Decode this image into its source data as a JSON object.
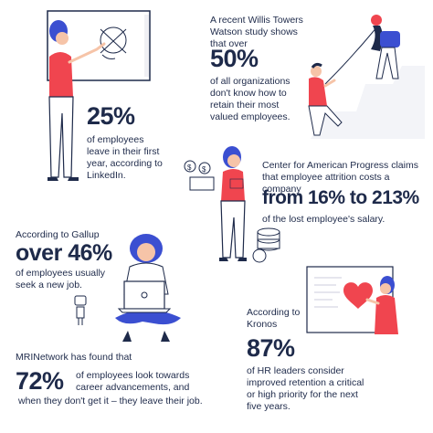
{
  "colors": {
    "navy": "#1e2a4a",
    "accent_red": "#f0454f",
    "hair_blue": "#3b4fd1",
    "skin": "#f6c4a8",
    "white": "#ffffff"
  },
  "icons": [
    "whiteboard-icon",
    "mountain-rope-icon",
    "money-coins-icon",
    "laptop-icon",
    "robot-toy-icon",
    "heart-board-icon"
  ],
  "stat_25": {
    "value": "25%",
    "caption": "of employees leave in their first year, according to LinkedIn."
  },
  "stat_50": {
    "intro": "A recent Willis Towers Watson study shows that over",
    "value": "50%",
    "caption": "of all organizations don't know how to retain their most valued employees."
  },
  "stat_cap": {
    "intro": "Center for American Progress claims that employee attrition costs a company",
    "value": "from 16% to 213%",
    "caption": "of the lost employee's salary."
  },
  "stat_46": {
    "intro": "According to Gallup",
    "value": "over 46%",
    "caption": "of employees usually seek a new job."
  },
  "stat_72": {
    "intro": "MRINetwork has found that",
    "value": "72%",
    "caption": "of employees look towards career advancements, and",
    "tail": "when they don't get it – they leave their job."
  },
  "stat_87": {
    "intro": "According to Kronos",
    "value": "87%",
    "caption": "of HR leaders consider improved retention a critical or high priority for the next five years."
  }
}
